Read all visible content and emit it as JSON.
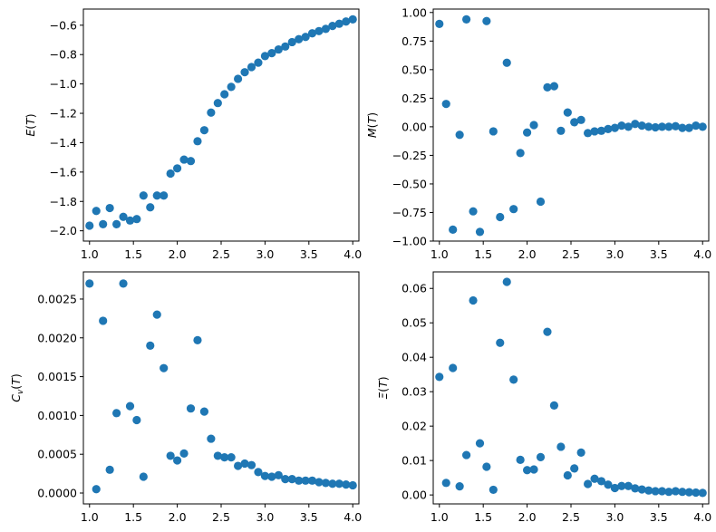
{
  "chart_data": [
    {
      "type": "scatter",
      "xlabel": "",
      "ylabel": "E(T)",
      "ylabel_math": {
        "symbol": "E",
        "sub": "",
        "arg": "(T)"
      },
      "xlim": [
        0.93,
        4.07
      ],
      "ylim": [
        -2.07,
        -0.49
      ],
      "xticks": [
        1.0,
        1.5,
        2.0,
        2.5,
        3.0,
        3.5,
        4.0
      ],
      "xtick_labels": [
        "1.0",
        "1.5",
        "2.0",
        "2.5",
        "3.0",
        "3.5",
        "4.0"
      ],
      "yticks": [
        -2.0,
        -1.8,
        -1.6,
        -1.4,
        -1.2,
        -1.0,
        -0.8,
        -0.6
      ],
      "ytick_labels": [
        "−2.0",
        "−1.8",
        "−1.6",
        "−1.4",
        "−1.2",
        "−1.0",
        "−0.8",
        "−0.6"
      ],
      "series": [
        {
          "x": [
            1.0,
            1.077,
            1.154,
            1.231,
            1.308,
            1.385,
            1.462,
            1.538,
            1.615,
            1.692,
            1.769,
            1.846,
            1.923,
            2.0,
            2.077,
            2.154,
            2.231,
            2.308,
            2.385,
            2.462,
            2.538,
            2.615,
            2.692,
            2.769,
            2.846,
            2.923,
            3.0,
            3.077,
            3.154,
            3.231,
            3.308,
            3.385,
            3.462,
            3.538,
            3.615,
            3.692,
            3.769,
            3.846,
            3.923,
            4.0
          ],
          "y": [
            -1.965,
            -1.865,
            -1.955,
            -1.845,
            -1.955,
            -1.905,
            -1.93,
            -1.92,
            -1.76,
            -1.84,
            -1.76,
            -1.76,
            -1.61,
            -1.575,
            -1.515,
            -1.525,
            -1.39,
            -1.315,
            -1.195,
            -1.13,
            -1.07,
            -1.02,
            -0.965,
            -0.92,
            -0.885,
            -0.855,
            -0.81,
            -0.79,
            -0.765,
            -0.745,
            -0.715,
            -0.695,
            -0.68,
            -0.655,
            -0.64,
            -0.625,
            -0.605,
            -0.59,
            -0.575,
            -0.56
          ]
        }
      ]
    },
    {
      "type": "scatter",
      "xlabel": "",
      "ylabel": "M(T)",
      "ylabel_math": {
        "symbol": "M",
        "sub": "",
        "arg": "(T)"
      },
      "xlim": [
        0.93,
        4.07
      ],
      "ylim": [
        -1.0,
        1.03
      ],
      "xticks": [
        1.0,
        1.5,
        2.0,
        2.5,
        3.0,
        3.5,
        4.0
      ],
      "xtick_labels": [
        "1.0",
        "1.5",
        "2.0",
        "2.5",
        "3.0",
        "3.5",
        "4.0"
      ],
      "yticks": [
        -1.0,
        -0.75,
        -0.5,
        -0.25,
        0.0,
        0.25,
        0.5,
        0.75,
        1.0
      ],
      "ytick_labels": [
        "−1.00",
        "−0.75",
        "−0.50",
        "−0.25",
        "0.00",
        "0.25",
        "0.50",
        "0.75",
        "1.00"
      ],
      "series": [
        {
          "x": [
            1.0,
            1.077,
            1.154,
            1.231,
            1.308,
            1.385,
            1.462,
            1.538,
            1.615,
            1.692,
            1.769,
            1.846,
            1.923,
            2.0,
            2.077,
            2.154,
            2.231,
            2.308,
            2.385,
            2.462,
            2.538,
            2.615,
            2.692,
            2.769,
            2.846,
            2.923,
            3.0,
            3.077,
            3.154,
            3.231,
            3.308,
            3.385,
            3.462,
            3.538,
            3.615,
            3.692,
            3.769,
            3.846,
            3.923,
            4.0
          ],
          "y": [
            0.9,
            0.2,
            -0.9,
            -0.07,
            0.94,
            -0.74,
            -0.92,
            0.925,
            -0.04,
            -0.79,
            0.56,
            -0.72,
            -0.23,
            -0.05,
            0.015,
            -0.655,
            0.345,
            0.355,
            -0.035,
            0.125,
            0.04,
            0.06,
            -0.055,
            -0.04,
            -0.035,
            -0.02,
            -0.01,
            0.01,
            0.0,
            0.025,
            0.01,
            0.0,
            -0.005,
            0.0,
            0.0,
            0.005,
            -0.01,
            -0.01,
            0.01,
            0.0
          ]
        }
      ]
    },
    {
      "type": "scatter",
      "xlabel": "",
      "ylabel": "Cv(T)",
      "ylabel_math": {
        "symbol": "C",
        "sub": "v",
        "arg": "(T)"
      },
      "xlim": [
        0.93,
        4.07
      ],
      "ylim": [
        -0.00014,
        0.00285
      ],
      "xticks": [
        1.0,
        1.5,
        2.0,
        2.5,
        3.0,
        3.5,
        4.0
      ],
      "xtick_labels": [
        "1.0",
        "1.5",
        "2.0",
        "2.5",
        "3.0",
        "3.5",
        "4.0"
      ],
      "yticks": [
        0.0,
        0.0005,
        0.001,
        0.0015,
        0.002,
        0.0025
      ],
      "ytick_labels": [
        "0.0000",
        "0.0005",
        "0.0010",
        "0.0015",
        "0.0020",
        "0.0025"
      ],
      "series": [
        {
          "x": [
            1.0,
            1.077,
            1.154,
            1.231,
            1.308,
            1.385,
            1.462,
            1.538,
            1.615,
            1.692,
            1.769,
            1.846,
            1.923,
            2.0,
            2.077,
            2.154,
            2.231,
            2.308,
            2.385,
            2.462,
            2.538,
            2.615,
            2.692,
            2.769,
            2.846,
            2.923,
            3.0,
            3.077,
            3.154,
            3.231,
            3.308,
            3.385,
            3.462,
            3.538,
            3.615,
            3.692,
            3.769,
            3.846,
            3.923,
            4.0
          ],
          "y": [
            0.0027,
            5e-05,
            0.00222,
            0.0003,
            0.00103,
            0.0027,
            0.00112,
            0.00094,
            0.00021,
            0.0019,
            0.0023,
            0.00161,
            0.00048,
            0.00042,
            0.00051,
            0.00109,
            0.00197,
            0.00105,
            0.0007,
            0.00048,
            0.00046,
            0.00046,
            0.00035,
            0.00038,
            0.00036,
            0.00027,
            0.00022,
            0.00021,
            0.00023,
            0.00018,
            0.00018,
            0.00016,
            0.00016,
            0.00016,
            0.00014,
            0.00013,
            0.00012,
            0.00012,
            0.00011,
            0.0001
          ]
        }
      ]
    },
    {
      "type": "scatter",
      "xlabel": "",
      "ylabel": "Ξ(T)",
      "ylabel_math": {
        "symbol": "Ξ",
        "sub": "",
        "arg": "(T)"
      },
      "xlim": [
        0.93,
        4.07
      ],
      "ylim": [
        -0.0026,
        0.0648
      ],
      "xticks": [
        1.0,
        1.5,
        2.0,
        2.5,
        3.0,
        3.5,
        4.0
      ],
      "xtick_labels": [
        "1.0",
        "1.5",
        "2.0",
        "2.5",
        "3.0",
        "3.5",
        "4.0"
      ],
      "yticks": [
        0.0,
        0.01,
        0.02,
        0.03,
        0.04,
        0.05,
        0.06
      ],
      "ytick_labels": [
        "0.00",
        "0.01",
        "0.02",
        "0.03",
        "0.04",
        "0.05",
        "0.06"
      ],
      "series": [
        {
          "x": [
            1.0,
            1.077,
            1.154,
            1.231,
            1.308,
            1.385,
            1.462,
            1.538,
            1.615,
            1.692,
            1.769,
            1.846,
            1.923,
            2.0,
            2.077,
            2.154,
            2.231,
            2.308,
            2.385,
            2.462,
            2.538,
            2.615,
            2.692,
            2.769,
            2.846,
            2.923,
            3.0,
            3.077,
            3.154,
            3.231,
            3.308,
            3.385,
            3.462,
            3.538,
            3.615,
            3.692,
            3.769,
            3.846,
            3.923,
            4.0
          ],
          "y": [
            0.0343,
            0.0035,
            0.0369,
            0.0025,
            0.0116,
            0.0565,
            0.015,
            0.0082,
            0.0015,
            0.0442,
            0.0619,
            0.0335,
            0.0102,
            0.0072,
            0.0074,
            0.011,
            0.0474,
            0.026,
            0.014,
            0.0057,
            0.0077,
            0.0123,
            0.0032,
            0.0047,
            0.004,
            0.003,
            0.002,
            0.0026,
            0.0026,
            0.0019,
            0.0016,
            0.0013,
            0.0011,
            0.0011,
            0.0009,
            0.0011,
            0.0009,
            0.0008,
            0.0007,
            0.0006
          ]
        }
      ]
    }
  ],
  "colors": {
    "marker": "#1f77b4",
    "axis": "#000000",
    "background": "#ffffff"
  }
}
